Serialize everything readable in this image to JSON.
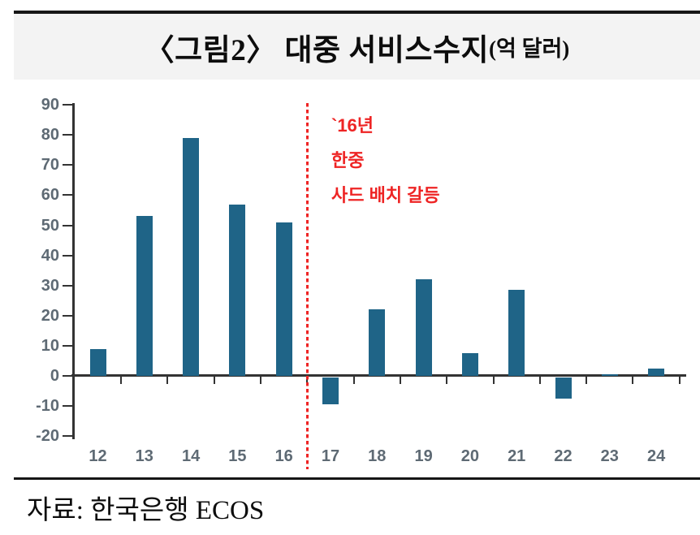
{
  "title": {
    "main": "〈그림2〉 대중 서비스수지",
    "unit_suffix": "(억 달러)"
  },
  "annotation": {
    "lines": [
      "`16년",
      "한중",
      "사드 배치 갈등"
    ]
  },
  "source": "자료: 한국은행 ECOS",
  "colors": {
    "bar": "#1f6487",
    "axis": "#333333",
    "tick_label": "#5e6a74",
    "annotation_red": "#ee2424",
    "title_band_bg": "#f3f3f3",
    "rule_black": "#161616"
  },
  "chart_data": {
    "type": "bar",
    "title": "〈그림2〉 대중 서비스수지(억 달러)",
    "xlabel": "",
    "ylabel": "",
    "categories": [
      "12",
      "13",
      "14",
      "15",
      "16",
      "17",
      "18",
      "19",
      "20",
      "21",
      "22",
      "23",
      "24"
    ],
    "values": [
      9,
      53,
      79,
      57,
      51,
      -9,
      22,
      32,
      7.5,
      28.5,
      -7,
      0.5,
      2.5
    ],
    "ylim": [
      -20,
      90
    ],
    "yticks": [
      90,
      80,
      70,
      60,
      50,
      40,
      30,
      20,
      10,
      0,
      -10,
      -20
    ],
    "grid": false,
    "legend": "none",
    "bar_color": "#1f6487",
    "reference_line": {
      "after_category": "16",
      "orientation": "vertical",
      "style": "dashed",
      "color": "#ee2424",
      "label_lines": [
        "`16년",
        "한중",
        "사드 배치 갈등"
      ]
    }
  }
}
